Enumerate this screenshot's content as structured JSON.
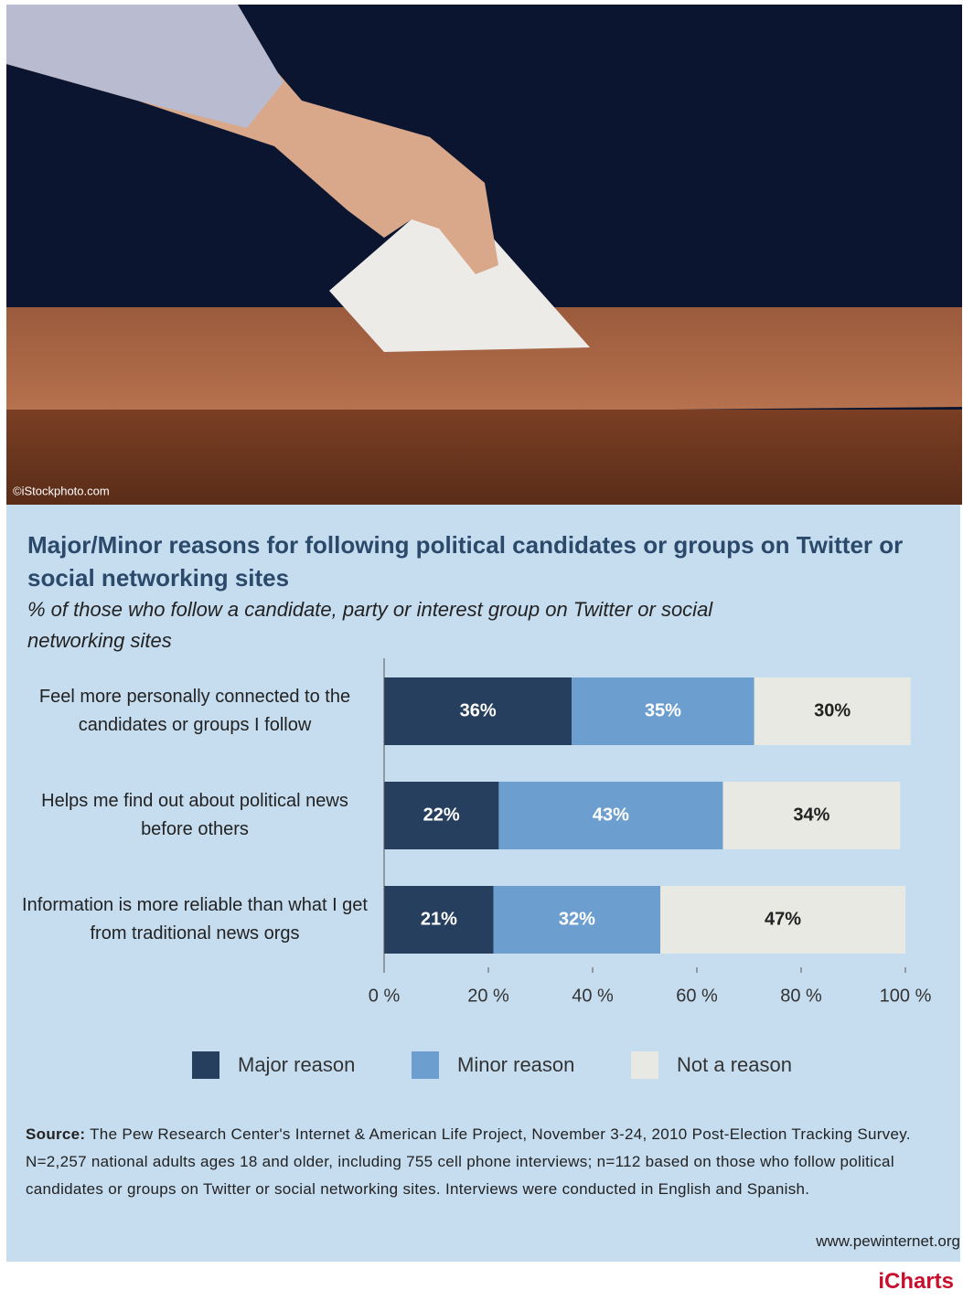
{
  "photo_credit": "©iStockphoto.com",
  "chart_data": {
    "type": "bar",
    "horizontal": true,
    "stacked": true,
    "title": "Major/Minor reasons for following political candidates or groups on Twitter or social networking sites",
    "subtitle": "% of those who follow a candidate, party or interest group on Twitter or social networking sites",
    "categories": [
      "Feel more personally connected to the candidates or groups I follow",
      "Helps me find out about political news before others",
      "Information is more reliable than what I get from traditional news orgs"
    ],
    "series": [
      {
        "name": "Major reason",
        "color": "#263f5e",
        "values": [
          36,
          22,
          21
        ],
        "value_labels": [
          "36%",
          "22%",
          "21%"
        ]
      },
      {
        "name": "Minor reason",
        "color": "#6c9fcf",
        "values": [
          35,
          43,
          32
        ],
        "value_labels": [
          "35%",
          "43%",
          "32%"
        ]
      },
      {
        "name": "Not a reason",
        "color": "#e9e9e4",
        "values": [
          30,
          34,
          47
        ],
        "value_labels": [
          "30%",
          "34%",
          "47%"
        ]
      }
    ],
    "xlim": [
      0,
      100
    ],
    "xticks": [
      {
        "value": 0,
        "label": "0 %"
      },
      {
        "value": 20,
        "label": "20 %"
      },
      {
        "value": 40,
        "label": "40 %"
      },
      {
        "value": 60,
        "label": "60 %"
      },
      {
        "value": 80,
        "label": "80 %"
      },
      {
        "value": 100,
        "label": "100 %"
      }
    ],
    "legend": "bottom"
  },
  "source_label": "Source:",
  "source": "The Pew Research Center's Internet & American Life Project, November 3-24, 2010 Post-Election Tracking Survey. N=2,257 national adults ages 18 and older, including 755 cell phone interviews; n=112 based on those who follow political candidates or groups on Twitter or social networking sites. Interviews were conducted in English and Spanish.",
  "website": "www.pewinternet.org",
  "brand": "iCharts"
}
